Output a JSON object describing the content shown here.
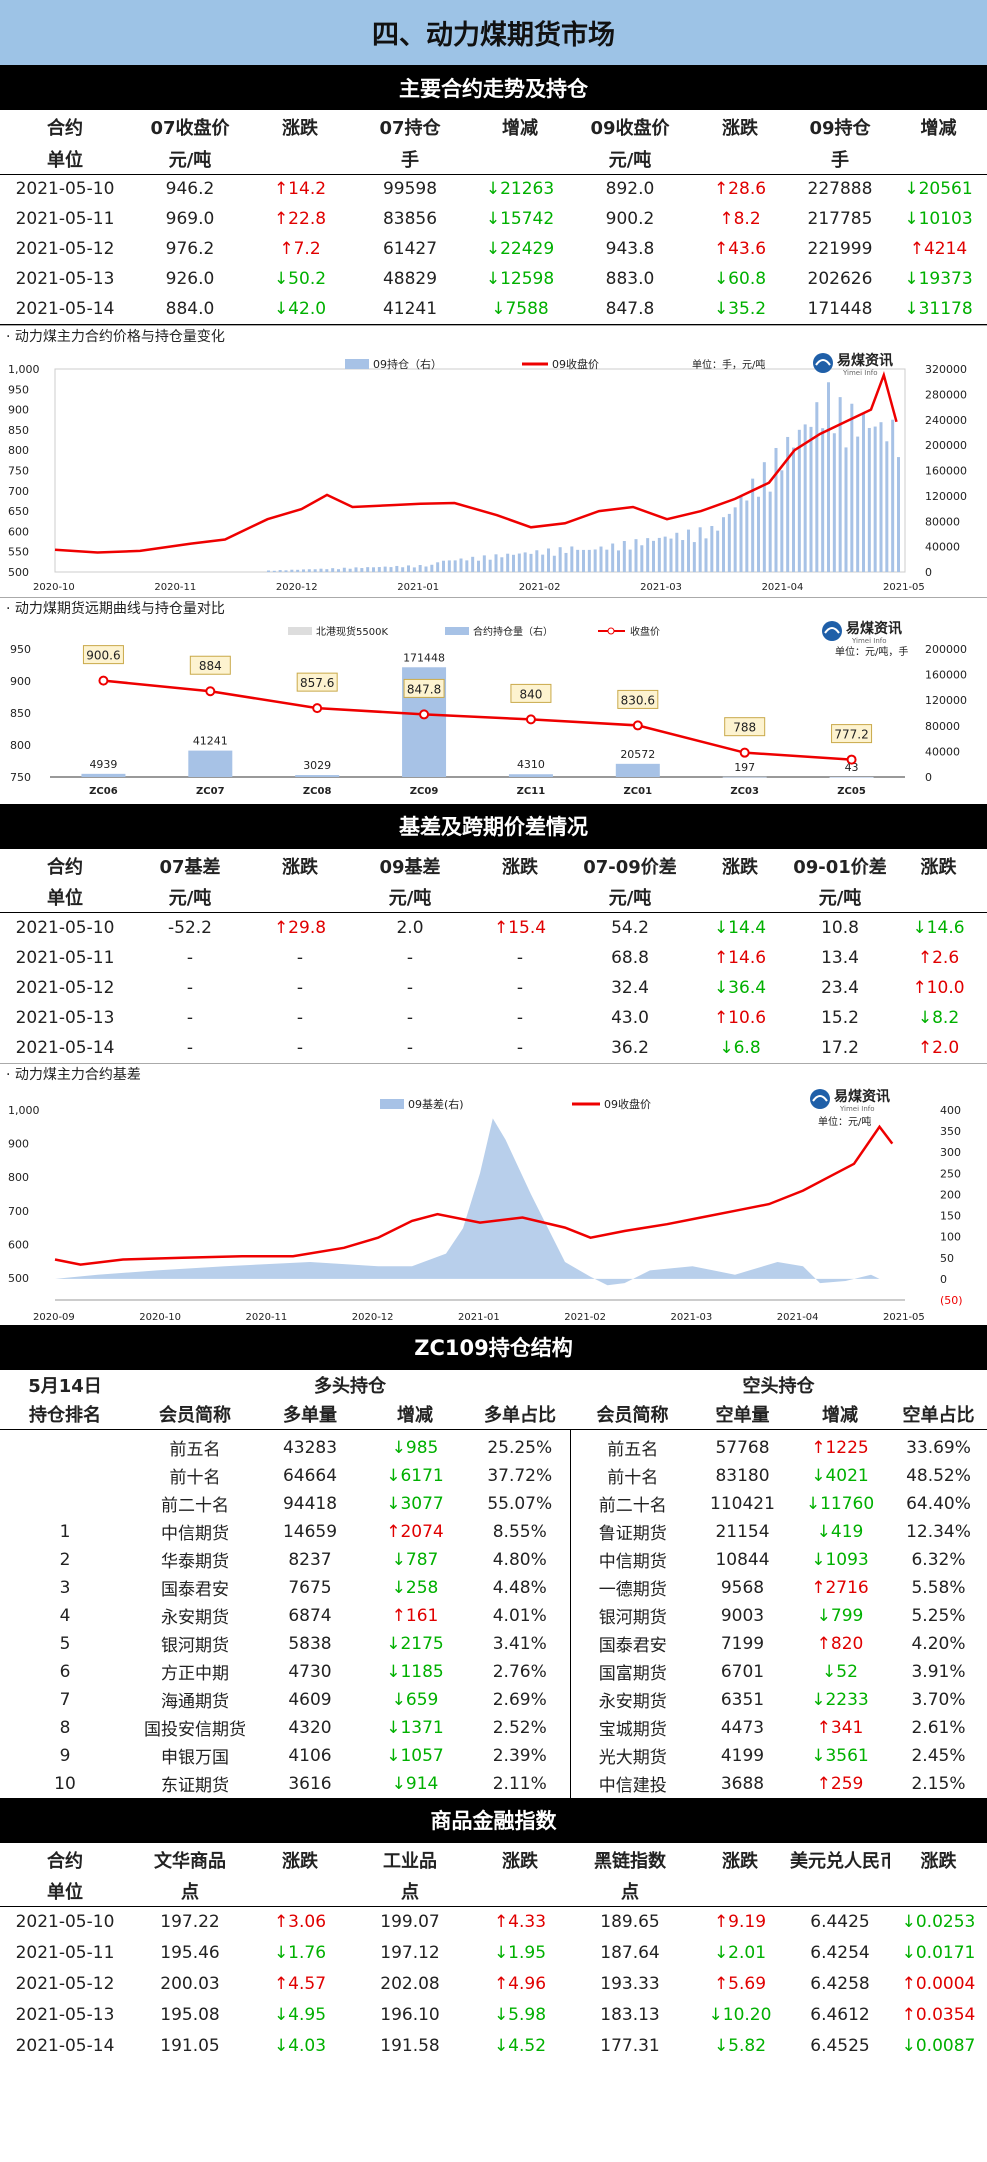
{
  "title": "四、动力煤期货市场",
  "s1": {
    "band": "主要合约走势及持仓",
    "h1": [
      "合约",
      "07收盘价",
      "涨跌",
      "07持仓",
      "增减",
      "09收盘价",
      "涨跌",
      "09持仓",
      "增减"
    ],
    "h2": [
      "单位",
      "元/吨",
      "",
      "手",
      "",
      "元/吨",
      "",
      "手",
      ""
    ],
    "rows": [
      [
        "2021-05-10",
        "946.2",
        "↑14.2",
        "99598",
        "↓21263",
        "892.0",
        "↑28.6",
        "227888",
        "↓20561"
      ],
      [
        "2021-05-11",
        "969.0",
        "↑22.8",
        "83856",
        "↓15742",
        "900.2",
        "↑8.2",
        "217785",
        "↓10103"
      ],
      [
        "2021-05-12",
        "976.2",
        "↑7.2",
        "61427",
        "↓22429",
        "943.8",
        "↑43.6",
        "221999",
        "↑4214"
      ],
      [
        "2021-05-13",
        "926.0",
        "↓50.2",
        "48829",
        "↓12598",
        "883.0",
        "↓60.8",
        "202626",
        "↓19373"
      ],
      [
        "2021-05-14",
        "884.0",
        "↓42.0",
        "41241",
        "↓7588",
        "847.8",
        "↓35.2",
        "171448",
        "↓31178"
      ]
    ]
  },
  "c1": {
    "label": "· 动力煤主力合约价格与持仓量变化",
    "legend_bar": "09持仓（右）",
    "legend_line": "09收盘价",
    "unit": "单位：手，元/吨",
    "logo": "易煤资讯",
    "logo_en": "Yimei Info",
    "yl": [
      "1,000",
      "950",
      "900",
      "850",
      "800",
      "750",
      "700",
      "650",
      "600",
      "550",
      "500"
    ],
    "yr": [
      "320000",
      "280000",
      "240000",
      "200000",
      "160000",
      "120000",
      "80000",
      "40000",
      "0"
    ],
    "x": [
      "2020-10",
      "2020-11",
      "2020-12",
      "2021-01",
      "2021-02",
      "2021-03",
      "2021-04",
      "2021-05"
    ]
  },
  "c2": {
    "label": "· 动力煤期货远期曲线与持仓量对比",
    "legend1": "北港现货5500K",
    "legend2": "合约持仓量（右）",
    "legend3": "收盘价",
    "unit": "单位：元/吨，手",
    "logo": "易煤资讯",
    "logo_en": "Yimei Info",
    "yl": [
      "950",
      "900",
      "850",
      "800",
      "750"
    ],
    "yr": [
      "200000",
      "160000",
      "120000",
      "80000",
      "40000",
      "0"
    ],
    "chart_data": {
      "type": "bar",
      "categories": [
        "ZC06",
        "ZC07",
        "ZC08",
        "ZC09",
        "ZC11",
        "ZC01",
        "ZC03",
        "ZC05"
      ],
      "series": [
        {
          "name": "合约持仓量（右）",
          "values": [
            4939,
            41241,
            3029,
            171448,
            4310,
            20572,
            197,
            43
          ]
        },
        {
          "name": "收盘价",
          "values": [
            900.6,
            884,
            857.6,
            847.8,
            840,
            830.6,
            788,
            777.2
          ]
        }
      ],
      "ylim": [
        750,
        950
      ],
      "y2lim": [
        0,
        200000
      ]
    },
    "bar_labels": [
      "4939",
      "41241",
      "3029",
      "171448",
      "4310",
      "20572",
      "197",
      "43"
    ],
    "line_labels": [
      "900.6",
      "884",
      "857.6",
      "847.8",
      "840",
      "830.6",
      "788",
      "777.2"
    ]
  },
  "s2": {
    "band": "基差及跨期价差情况",
    "h1": [
      "合约",
      "07基差",
      "涨跌",
      "09基差",
      "涨跌",
      "07-09价差",
      "涨跌",
      "09-01价差",
      "涨跌"
    ],
    "h2": [
      "单位",
      "元/吨",
      "",
      "元/吨",
      "",
      "元/吨",
      "",
      "元/吨",
      ""
    ],
    "rows": [
      [
        "2021-05-10",
        "-52.2",
        "↑29.8",
        "2.0",
        "↑15.4",
        "54.2",
        "↓14.4",
        "10.8",
        "↓14.6"
      ],
      [
        "2021-05-11",
        "-",
        "-",
        "-",
        "-",
        "68.8",
        "↑14.6",
        "13.4",
        "↑2.6"
      ],
      [
        "2021-05-12",
        "-",
        "-",
        "-",
        "-",
        "32.4",
        "↓36.4",
        "23.4",
        "↑10.0"
      ],
      [
        "2021-05-13",
        "-",
        "-",
        "-",
        "-",
        "43.0",
        "↑10.6",
        "15.2",
        "↓8.2"
      ],
      [
        "2021-05-14",
        "-",
        "-",
        "-",
        "-",
        "36.2",
        "↓6.8",
        "17.2",
        "↑2.0"
      ]
    ]
  },
  "c3": {
    "label": "·  动力煤主力合约基差",
    "legend_area": "09基差(右)",
    "legend_line": "09收盘价",
    "unit": "单位：元/吨",
    "logo": "易煤资讯",
    "logo_en": "Yimei Info",
    "yl": [
      "1,000",
      "900",
      "800",
      "700",
      "600",
      "500"
    ],
    "yr": [
      "400",
      "350",
      "300",
      "250",
      "200",
      "150",
      "100",
      "50",
      "0",
      "(50)"
    ],
    "x": [
      "2020-09",
      "2020-10",
      "2020-11",
      "2020-12",
      "2021-01",
      "2021-02",
      "2021-03",
      "2021-04",
      "2021-05"
    ]
  },
  "s3": {
    "band": "ZC109持仓结构",
    "date": "5月14日",
    "long": "多头持仓",
    "short": "空头持仓",
    "h": [
      "持仓排名",
      "会员简称",
      "多单量",
      "增减",
      "多单占比",
      "会员简称",
      "空单量",
      "增减",
      "空单占比"
    ],
    "rows": [
      [
        "",
        "前五名",
        "43283",
        "↓985",
        "25.25%",
        "前五名",
        "57768",
        "↑1225",
        "33.69%"
      ],
      [
        "",
        "前十名",
        "64664",
        "↓6171",
        "37.72%",
        "前十名",
        "83180",
        "↓4021",
        "48.52%"
      ],
      [
        "",
        "前二十名",
        "94418",
        "↓3077",
        "55.07%",
        "前二十名",
        "110421",
        "↓11760",
        "64.40%"
      ],
      [
        "1",
        "中信期货",
        "14659",
        "↑2074",
        "8.55%",
        "鲁证期货",
        "21154",
        "↓419",
        "12.34%"
      ],
      [
        "2",
        "华泰期货",
        "8237",
        "↓787",
        "4.80%",
        "中信期货",
        "10844",
        "↓1093",
        "6.32%"
      ],
      [
        "3",
        "国泰君安",
        "7675",
        "↓258",
        "4.48%",
        "一德期货",
        "9568",
        "↑2716",
        "5.58%"
      ],
      [
        "4",
        "永安期货",
        "6874",
        "↑161",
        "4.01%",
        "银河期货",
        "9003",
        "↓799",
        "5.25%"
      ],
      [
        "5",
        "银河期货",
        "5838",
        "↓2175",
        "3.41%",
        "国泰君安",
        "7199",
        "↑820",
        "4.20%"
      ],
      [
        "6",
        "方正中期",
        "4730",
        "↓1185",
        "2.76%",
        "国富期货",
        "6701",
        "↓52",
        "3.91%"
      ],
      [
        "7",
        "海通期货",
        "4609",
        "↓659",
        "2.69%",
        "永安期货",
        "6351",
        "↓2233",
        "3.70%"
      ],
      [
        "8",
        "国投安信期货",
        "4320",
        "↓1371",
        "2.52%",
        "宝城期货",
        "4473",
        "↑341",
        "2.61%"
      ],
      [
        "9",
        "申银万国",
        "4106",
        "↓1057",
        "2.39%",
        "光大期货",
        "4199",
        "↓3561",
        "2.45%"
      ],
      [
        "10",
        "东证期货",
        "3616",
        "↓914",
        "2.11%",
        "中信建投",
        "3688",
        "↑259",
        "2.15%"
      ]
    ]
  },
  "s4": {
    "band": "商品金融指数",
    "h1": [
      "合约",
      "文华商品",
      "涨跌",
      "工业品",
      "涨跌",
      "黑链指数",
      "涨跌",
      "美元兑人民币",
      "涨跌"
    ],
    "h2": [
      "单位",
      "点",
      "",
      "点",
      "",
      "点",
      "",
      "",
      ""
    ],
    "rows": [
      [
        "2021-05-10",
        "197.22",
        "↑3.06",
        "199.07",
        "↑4.33",
        "189.65",
        "↑9.19",
        "6.4425",
        "↓0.0253"
      ],
      [
        "2021-05-11",
        "195.46",
        "↓1.76",
        "197.12",
        "↓1.95",
        "187.64",
        "↓2.01",
        "6.4254",
        "↓0.0171"
      ],
      [
        "2021-05-12",
        "200.03",
        "↑4.57",
        "202.08",
        "↑4.96",
        "193.33",
        "↑5.69",
        "6.4258",
        "↑0.0004"
      ],
      [
        "2021-05-13",
        "195.08",
        "↓4.95",
        "196.10",
        "↓5.98",
        "183.13",
        "↓10.20",
        "6.4612",
        "↑0.0354"
      ],
      [
        "2021-05-14",
        "191.05",
        "↓4.03",
        "191.58",
        "↓4.52",
        "177.31",
        "↓5.82",
        "6.4525",
        "↓0.0087"
      ]
    ]
  }
}
